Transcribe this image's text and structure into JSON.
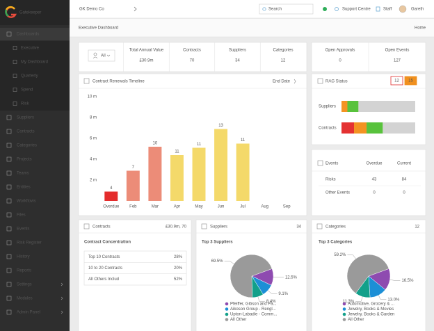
{
  "sidebar": {
    "logo": "Gatekeeper",
    "menu": [
      {
        "label": "Dashboards",
        "children": [
          "Executive",
          "My Dashboard",
          "Quarterly",
          "Spend",
          "Risk"
        ]
      },
      {
        "label": "Suppliers"
      },
      {
        "label": "Contracts"
      },
      {
        "label": "Categories"
      },
      {
        "label": "Projects"
      },
      {
        "label": "Teams"
      },
      {
        "label": "Entities"
      },
      {
        "label": "Workflows"
      },
      {
        "label": "Files"
      },
      {
        "label": "Events"
      },
      {
        "label": "Risk Register"
      },
      {
        "label": "History"
      },
      {
        "label": "Reports"
      },
      {
        "label": "Settings"
      },
      {
        "label": "Modules"
      },
      {
        "label": "Admin Panel"
      }
    ]
  },
  "topbar": {
    "company": "GK Demo Co",
    "search": "Search",
    "support": "Support Centre",
    "staff": "Staff",
    "user": "Gareth"
  },
  "header": {
    "title": "Executive Dashboard",
    "breadcrumb": "Home"
  },
  "filter": "All",
  "stats": [
    {
      "label": "Total Annual Value",
      "value": "£30.9m"
    },
    {
      "label": "Contracts",
      "value": 70
    },
    {
      "label": "Suppliers",
      "value": 34
    },
    {
      "label": "Categories",
      "value": 12
    }
  ],
  "open_stats": [
    {
      "label": "Open Approvals",
      "value": 0,
      "color": "#e02b2b"
    },
    {
      "label": "Open Events",
      "value": 127,
      "color": "#1a9bb8"
    }
  ],
  "events": {
    "title": "Events",
    "columns": [
      "Overdue",
      "Current"
    ],
    "rows": [
      {
        "label": "Risks",
        "overdue": 43,
        "current": 84,
        "color": "#e02b2b"
      },
      {
        "label": "Other Events",
        "overdue": 0,
        "current": 0,
        "color": "#2a8fd0"
      }
    ]
  },
  "contracts_panel": {
    "title": "Contracts",
    "summary": "£30.9m, 70",
    "subtitle": "Contract Concentration",
    "rows": [
      [
        "Top 10 Contracts",
        "28%"
      ],
      [
        "10 to 20 Contracts",
        "20%"
      ],
      [
        "All Others Includ",
        "52%"
      ]
    ]
  },
  "suppliers_panel": {
    "title": "Suppliers",
    "count": 34
  },
  "categories_panel": {
    "title": "Categories",
    "count": 12
  },
  "chart_data": [
    {
      "type": "bar",
      "title": "Contract Renewals Timeline",
      "sort_label": "End Date",
      "categories": [
        "Overdue",
        "Feb",
        "Mar",
        "Apr",
        "May",
        "Jun",
        "Jul",
        "Aug",
        "Sep"
      ],
      "values": [
        0.9,
        2.9,
        5.2,
        4.4,
        5.1,
        6.9,
        5.5,
        null,
        null
      ],
      "contract_counts": [
        4,
        7,
        10,
        11,
        11,
        13,
        11,
        null,
        null
      ],
      "colors": [
        "#e42c2c",
        "#ec8c78",
        "#ec8c78",
        "#f4d96a",
        "#f4d96a",
        "#f4d96a",
        "#f4d96a",
        "#f4d96a",
        "#f4d96a"
      ],
      "ylim": [
        0,
        10
      ],
      "yticks": [
        {
          "value": 2,
          "label": "2 m"
        },
        {
          "value": 4,
          "label": "4 m"
        },
        {
          "value": 6,
          "label": "6 m"
        },
        {
          "value": 8,
          "label": "8 m"
        },
        {
          "value": 10,
          "label": "10 m"
        }
      ],
      "grid": false
    },
    {
      "type": "stacked-hbar",
      "title": "RAG Status",
      "categories": [
        "Suppliers",
        "Contracts"
      ],
      "badges": [
        {
          "value": 12,
          "color": "#e02b2b"
        },
        {
          "value": 15,
          "color": "#f0901e"
        }
      ],
      "xlim": [
        0,
        100
      ],
      "series": [
        {
          "color": "#e43232",
          "values": [
            0,
            17
          ]
        },
        {
          "color": "#f39322",
          "values": [
            8,
            17
          ]
        },
        {
          "color": "#58c23c",
          "values": [
            15,
            22
          ]
        },
        {
          "color": "#d3d3d3",
          "values": [
            77,
            44
          ]
        }
      ]
    },
    {
      "type": "pie",
      "title": "Top 3 Suppliers",
      "categories": [
        "Pfeiffer, Gibson and Pa...",
        "Aikoson Group - Rengl...",
        "Upton-Labadie - Comm...",
        "All Other"
      ],
      "values": [
        12.5,
        9.1,
        8.4,
        69.5
      ],
      "value_labels": [
        "12.5%",
        "9.1%",
        "8.4%",
        "69.5%"
      ],
      "colors": [
        "#8e4bb0",
        "#1c8fd6",
        "#12a08a",
        "#9a9a9a"
      ]
    },
    {
      "type": "pie",
      "title": "Top 3 Categories",
      "categories": [
        "Automotive, Grocery & ...",
        "Jewelry, Books & Movies",
        "Jewelry, Books & Garden",
        "All Other"
      ],
      "values": [
        16.5,
        13.0,
        11.3,
        59.2
      ],
      "value_labels": [
        "16.5%",
        "13.0%",
        "11.3%",
        "59.2%"
      ],
      "colors": [
        "#8e4bb0",
        "#1c8fd6",
        "#12a08a",
        "#9a9a9a"
      ]
    }
  ]
}
